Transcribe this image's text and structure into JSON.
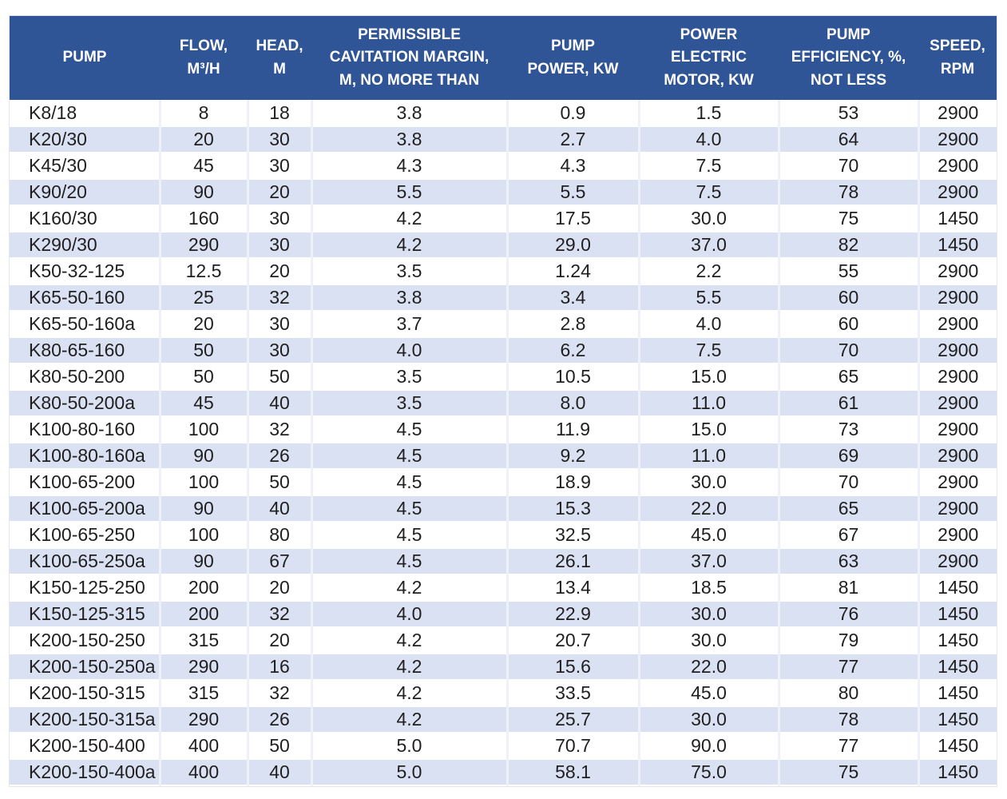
{
  "colors": {
    "header_bg": "#2F5597",
    "header_text": "#FFFFFF",
    "banded_row_bg": "#D9E1F2",
    "plain_row_bg": "#FFFFFF",
    "body_text": "#1F1F1F"
  },
  "table": {
    "columns": [
      {
        "id": "pump",
        "label": "PUMP"
      },
      {
        "id": "flow_m3h",
        "label": "FLOW,\nM³/H"
      },
      {
        "id": "head_m",
        "label": "HEAD,\nM"
      },
      {
        "id": "cavitation_margin",
        "label": "PERMISSIBLE\nCAVITATION MARGIN,\nM, NO MORE THAN"
      },
      {
        "id": "pump_power_kw",
        "label": "PUMP\nPOWER, KW"
      },
      {
        "id": "motor_power_kw",
        "label": "POWER\nELECTRIC\nMOTOR, KW"
      },
      {
        "id": "efficiency_pct",
        "label": "PUMP\nEFFICIENCY, %,\nNOT LESS"
      },
      {
        "id": "speed_rpm",
        "label": "SPEED,\nRPM"
      }
    ],
    "rows": [
      [
        "K8/18",
        "8",
        "18",
        "3.8",
        "0.9",
        "1.5",
        "53",
        "2900"
      ],
      [
        "K20/30",
        "20",
        "30",
        "3.8",
        "2.7",
        "4.0",
        "64",
        "2900"
      ],
      [
        "K45/30",
        "45",
        "30",
        "4.3",
        "4.3",
        "7.5",
        "70",
        "2900"
      ],
      [
        "K90/20",
        "90",
        "20",
        "5.5",
        "5.5",
        "7.5",
        "78",
        "2900"
      ],
      [
        "K160/30",
        "160",
        "30",
        "4.2",
        "17.5",
        "30.0",
        "75",
        "1450"
      ],
      [
        "K290/30",
        "290",
        "30",
        "4.2",
        "29.0",
        "37.0",
        "82",
        "1450"
      ],
      [
        "K50-32-125",
        "12.5",
        "20",
        "3.5",
        "1.24",
        "2.2",
        "55",
        "2900"
      ],
      [
        "K65-50-160",
        "25",
        "32",
        "3.8",
        "3.4",
        "5.5",
        "60",
        "2900"
      ],
      [
        "K65-50-160a",
        "20",
        "30",
        "3.7",
        "2.8",
        "4.0",
        "60",
        "2900"
      ],
      [
        "K80-65-160",
        "50",
        "30",
        "4.0",
        "6.2",
        "7.5",
        "70",
        "2900"
      ],
      [
        "K80-50-200",
        "50",
        "50",
        "3.5",
        "10.5",
        "15.0",
        "65",
        "2900"
      ],
      [
        "K80-50-200a",
        "45",
        "40",
        "3.5",
        "8.0",
        "11.0",
        "61",
        "2900"
      ],
      [
        "K100-80-160",
        "100",
        "32",
        "4.5",
        "11.9",
        "15.0",
        "73",
        "2900"
      ],
      [
        "K100-80-160a",
        "90",
        "26",
        "4.5",
        "9.2",
        "11.0",
        "69",
        "2900"
      ],
      [
        "K100-65-200",
        "100",
        "50",
        "4.5",
        "18.9",
        "30.0",
        "70",
        "2900"
      ],
      [
        "K100-65-200a",
        "90",
        "40",
        "4.5",
        "15.3",
        "22.0",
        "65",
        "2900"
      ],
      [
        "K100-65-250",
        "100",
        "80",
        "4.5",
        "32.5",
        "45.0",
        "67",
        "2900"
      ],
      [
        "K100-65-250a",
        "90",
        "67",
        "4.5",
        "26.1",
        "37.0",
        "63",
        "2900"
      ],
      [
        "K150-125-250",
        "200",
        "20",
        "4.2",
        "13.4",
        "18.5",
        "81",
        "1450"
      ],
      [
        "K150-125-315",
        "200",
        "32",
        "4.0",
        "22.9",
        "30.0",
        "76",
        "1450"
      ],
      [
        "K200-150-250",
        "315",
        "20",
        "4.2",
        "20.7",
        "30.0",
        "79",
        "1450"
      ],
      [
        "K200-150-250a",
        "290",
        "16",
        "4.2",
        "15.6",
        "22.0",
        "77",
        "1450"
      ],
      [
        "K200-150-315",
        "315",
        "32",
        "4.2",
        "33.5",
        "45.0",
        "80",
        "1450"
      ],
      [
        "K200-150-315a",
        "290",
        "26",
        "4.2",
        "25.7",
        "30.0",
        "78",
        "1450"
      ],
      [
        "K200-150-400",
        "400",
        "50",
        "5.0",
        "70.7",
        "90.0",
        "77",
        "1450"
      ],
      [
        "K200-150-400a",
        "400",
        "40",
        "5.0",
        "58.1",
        "75.0",
        "75",
        "1450"
      ]
    ]
  }
}
